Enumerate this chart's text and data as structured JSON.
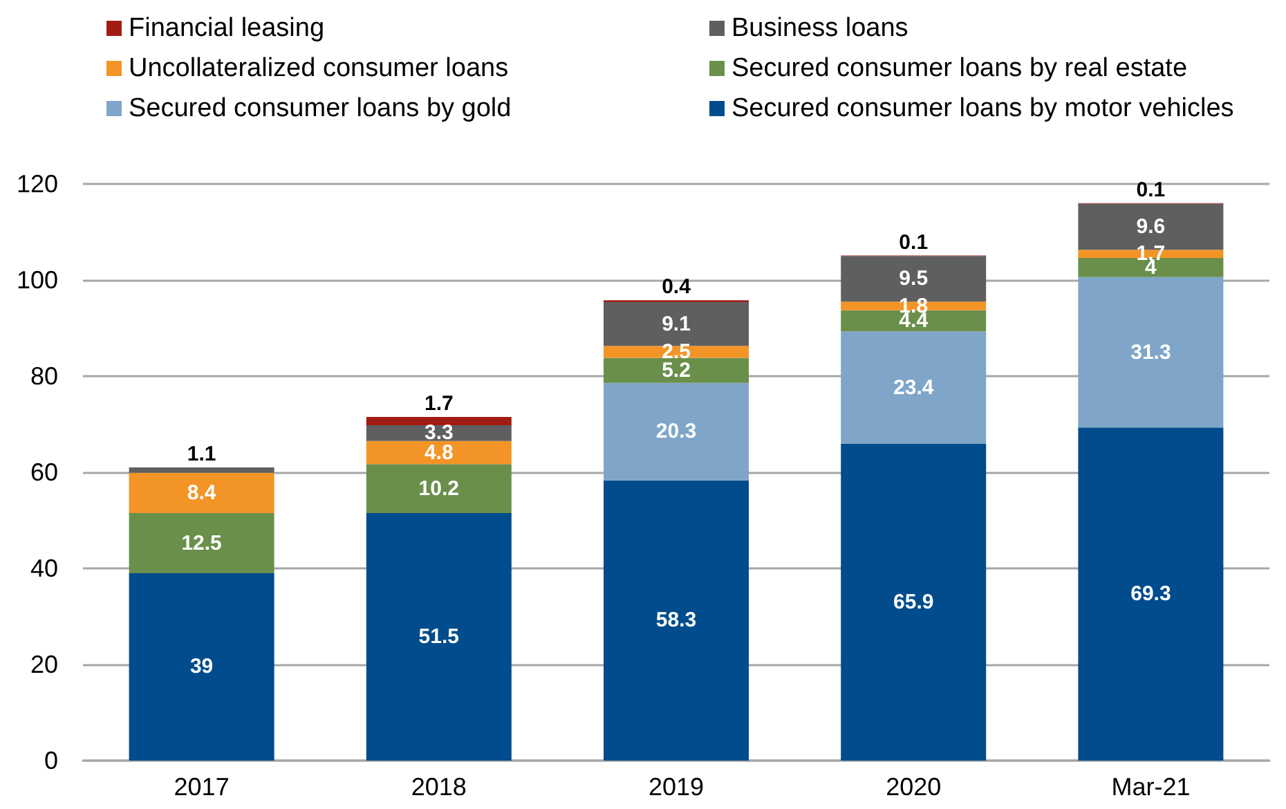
{
  "chart_data": {
    "type": "bar",
    "stacked": true,
    "categories": [
      "2017",
      "2018",
      "2019",
      "2020",
      "Mar-21"
    ],
    "series": [
      {
        "name": "Secured consumer loans by motor vehicles",
        "color": "#004c8c",
        "values": [
          39,
          51.5,
          58.3,
          65.9,
          69.3
        ]
      },
      {
        "name": "Secured consumer loans by gold",
        "color": "#7fa6c8",
        "values": [
          null,
          null,
          20.3,
          23.4,
          31.3
        ]
      },
      {
        "name": "Secured consumer loans by real estate",
        "color": "#6a8f4b",
        "values": [
          12.5,
          10.2,
          5.2,
          4.4,
          4
        ]
      },
      {
        "name": "Uncollateralized consumer loans",
        "color": "#f39426",
        "values": [
          8.4,
          4.8,
          2.5,
          1.8,
          1.7
        ]
      },
      {
        "name": "Business loans",
        "color": "#5f5f61",
        "values": [
          1.1,
          3.3,
          9.1,
          9.5,
          9.6
        ]
      },
      {
        "name": "Financial leasing",
        "color": "#a11d14",
        "values": [
          null,
          1.7,
          0.4,
          0.1,
          0.1
        ]
      }
    ],
    "ylim": [
      0,
      120
    ],
    "yticks": [
      0,
      20,
      40,
      60,
      80,
      100,
      120
    ],
    "grid": "y",
    "legend": "top left",
    "data_labels": true
  }
}
